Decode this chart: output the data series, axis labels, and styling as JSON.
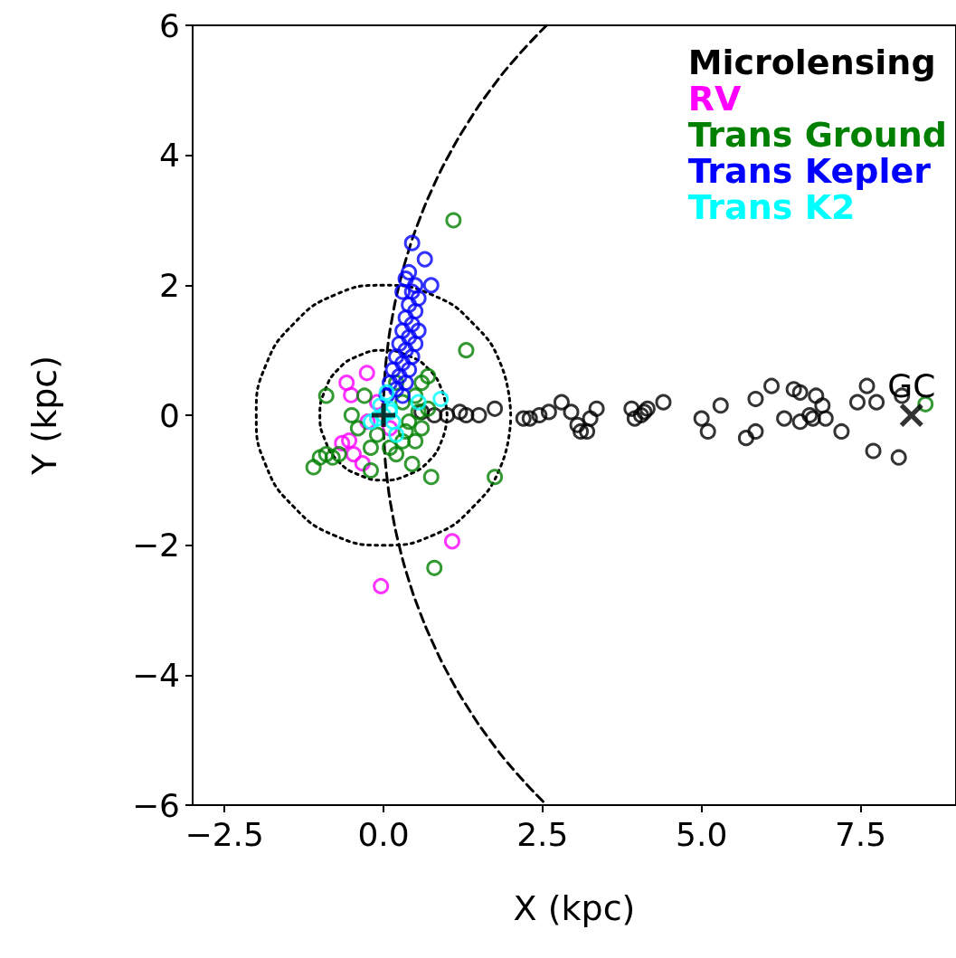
{
  "chart_data": {
    "type": "scatter",
    "xlabel": "X (kpc)",
    "ylabel": "Y (kpc)",
    "xlim": [
      -3,
      9
    ],
    "ylim": [
      -6,
      6
    ],
    "xticks": [
      {
        "value": -2.5,
        "label": "−2.5"
      },
      {
        "value": 0,
        "label": "0.0"
      },
      {
        "value": 2.5,
        "label": "2.5"
      },
      {
        "value": 5,
        "label": "5.0"
      },
      {
        "value": 7.5,
        "label": "7.5"
      }
    ],
    "yticks": [
      {
        "value": -6,
        "label": "−6"
      },
      {
        "value": -4,
        "label": "−4"
      },
      {
        "value": -2,
        "label": "−2"
      },
      0,
      2,
      4,
      6
    ],
    "grid": false,
    "legend": "top right",
    "marker": "circle",
    "annotations": [
      {
        "text": "GC",
        "x": 8.3,
        "y": 0.2
      }
    ],
    "series": [
      {
        "name": "Microlensing",
        "color": "#000000",
        "x": [
          0.6,
          0.8,
          1.0,
          1.2,
          1.3,
          1.5,
          1.75,
          2.2,
          2.3,
          2.45,
          2.6,
          2.8,
          2.95,
          3.05,
          3.1,
          3.2,
          3.25,
          3.35,
          3.9,
          3.95,
          4.05,
          4.1,
          4.15,
          4.4,
          5.0,
          5.1,
          5.3,
          5.7,
          5.85,
          5.85,
          6.1,
          6.3,
          6.45,
          6.55,
          6.55,
          6.7,
          6.8,
          6.75,
          6.9,
          6.95,
          7.2,
          7.45,
          7.6,
          7.75,
          7.7,
          8.1,
          8.15
        ],
        "values": [
          0.05,
          0.0,
          0.0,
          0.05,
          0.0,
          0.0,
          0.1,
          -0.05,
          -0.05,
          0.0,
          0.05,
          0.2,
          0.05,
          -0.15,
          -0.25,
          -0.25,
          -0.05,
          0.1,
          0.1,
          -0.05,
          0.0,
          0.05,
          0.1,
          0.2,
          -0.05,
          -0.25,
          0.15,
          -0.35,
          -0.25,
          0.25,
          0.45,
          -0.05,
          0.4,
          0.35,
          -0.1,
          0.0,
          0.3,
          -0.05,
          0.15,
          -0.05,
          -0.25,
          0.2,
          0.45,
          0.2,
          -0.55,
          -0.65,
          0.3
        ]
      },
      {
        "name": "RV",
        "color": "#ff00ff",
        "x": [
          -0.26,
          -0.58,
          -0.51,
          -0.65,
          -0.54,
          -0.33,
          -0.47,
          1.08,
          -0.04,
          -0.25,
          0.1,
          -0.1
        ],
        "values": [
          0.65,
          0.5,
          0.31,
          -0.43,
          -0.39,
          -0.74,
          -0.6,
          -1.94,
          -2.63,
          -0.1,
          -0.2,
          0.2
        ]
      },
      {
        "name": "Trans Ground",
        "color": "#008000",
        "x": [
          1.1,
          1.3,
          -0.9,
          -1.0,
          -0.9,
          -1.1,
          -0.8,
          -0.7,
          -0.2,
          0.2,
          0.45,
          0.75,
          1.75,
          0.8,
          8.52,
          0.3,
          0.5,
          0.6,
          0.7,
          0.4,
          0.6,
          0.3,
          -0.1,
          -0.4,
          -0.5,
          -0.3,
          0.2,
          0.5,
          0.1,
          -0.2,
          0.7,
          0.55,
          0.35
        ],
        "values": [
          3.0,
          1.0,
          0.3,
          -0.65,
          -0.6,
          -0.8,
          -0.65,
          -0.6,
          -0.85,
          -0.6,
          -0.75,
          -0.95,
          -0.95,
          -2.35,
          0.17,
          0.2,
          0.3,
          0.5,
          0.6,
          -0.1,
          -0.2,
          -0.4,
          -0.3,
          -0.2,
          0.0,
          0.3,
          0.5,
          -0.4,
          -0.5,
          -0.5,
          0.1,
          0.05,
          -0.25
        ]
      },
      {
        "name": "Trans Kepler",
        "color": "#0000ff",
        "x": [
          0.45,
          0.65,
          0.4,
          0.75,
          0.05,
          0.1,
          0.15,
          0.2,
          0.25,
          0.3,
          0.35,
          0.4,
          0.45,
          0.5,
          0.2,
          0.25,
          0.3,
          0.35,
          0.4,
          0.45,
          0.5,
          0.55,
          0.3,
          0.35,
          0.4,
          0.45,
          0.5,
          0.55,
          0.3,
          0.35
        ],
        "values": [
          2.65,
          2.4,
          2.2,
          2.0,
          0.3,
          0.5,
          0.7,
          0.9,
          1.1,
          1.3,
          1.5,
          1.7,
          1.9,
          2.0,
          0.4,
          0.6,
          0.8,
          1.0,
          1.2,
          1.4,
          1.6,
          1.8,
          0.3,
          0.5,
          0.7,
          0.9,
          1.1,
          1.3,
          1.9,
          2.1
        ]
      },
      {
        "name": "Trans K2",
        "color": "#00ffff",
        "x": [
          0,
          0.1,
          -0.1,
          0.15,
          0.05,
          -0.2,
          0.2,
          0.55,
          0.9,
          0.1,
          -0.05
        ],
        "values": [
          0,
          0.05,
          -0.05,
          -0.1,
          0.35,
          -0.1,
          -0.3,
          0.2,
          0.25,
          0.1,
          0.15
        ]
      },
      {
        "type": "line",
        "color": "#000000",
        "line_style": "dashed",
        "marker": "none",
        "x": [
          2.565,
          2.084,
          1.675,
          1.326,
          1.027,
          0.774,
          0.561,
          0.385,
          0.245,
          0.137,
          0.06,
          0.015,
          0,
          0.015,
          0.06,
          0.137,
          0.245,
          0.385,
          0.561,
          0.774,
          1.027,
          1.326,
          1.675,
          2.084,
          2.565
        ],
        "values": [
          6,
          5.5,
          5,
          4.5,
          4,
          3.5,
          3,
          2.5,
          2,
          1.5,
          1,
          0.5,
          0,
          -0.5,
          -1,
          -1.5,
          -2,
          -2.5,
          -3,
          -3.5,
          -4,
          -4.5,
          -5,
          -5.5,
          -6
        ]
      },
      {
        "type": "line",
        "color": "#000000",
        "line_style": "dotted",
        "marker": "none",
        "x": [
          1,
          0.92,
          0.71,
          0.38,
          0,
          -0.38,
          -0.71,
          -0.92,
          -1,
          -0.92,
          -0.71,
          -0.38,
          0,
          0.38,
          0.71,
          0.92,
          1
        ],
        "values": [
          0,
          0.38,
          0.71,
          0.92,
          1,
          0.92,
          0.71,
          0.38,
          0,
          -0.38,
          -0.71,
          -0.92,
          -1,
          -0.92,
          -0.71,
          -0.38,
          -0.03
        ]
      },
      {
        "type": "line",
        "color": "#000000",
        "line_style": "dotted",
        "marker": "none",
        "x": [
          2,
          1.85,
          1.41,
          0.77,
          0,
          -0.77,
          -1.41,
          -1.85,
          -2,
          -1.85,
          -1.41,
          -0.77,
          0,
          0.77,
          1.41,
          1.85,
          2
        ],
        "values": [
          0,
          0.77,
          1.41,
          1.85,
          2,
          1.85,
          1.41,
          0.77,
          0,
          -0.77,
          -1.41,
          -1.85,
          -2,
          -1.85,
          -1.41,
          -0.77,
          -0.05
        ]
      },
      {
        "type": "scatter",
        "color": "#000000",
        "marker": "plus",
        "x": [
          0
        ],
        "values": [
          0
        ]
      },
      {
        "type": "scatter",
        "color": "#000000",
        "marker": "cross",
        "x": [
          8.3
        ],
        "values": [
          0
        ]
      }
    ]
  }
}
